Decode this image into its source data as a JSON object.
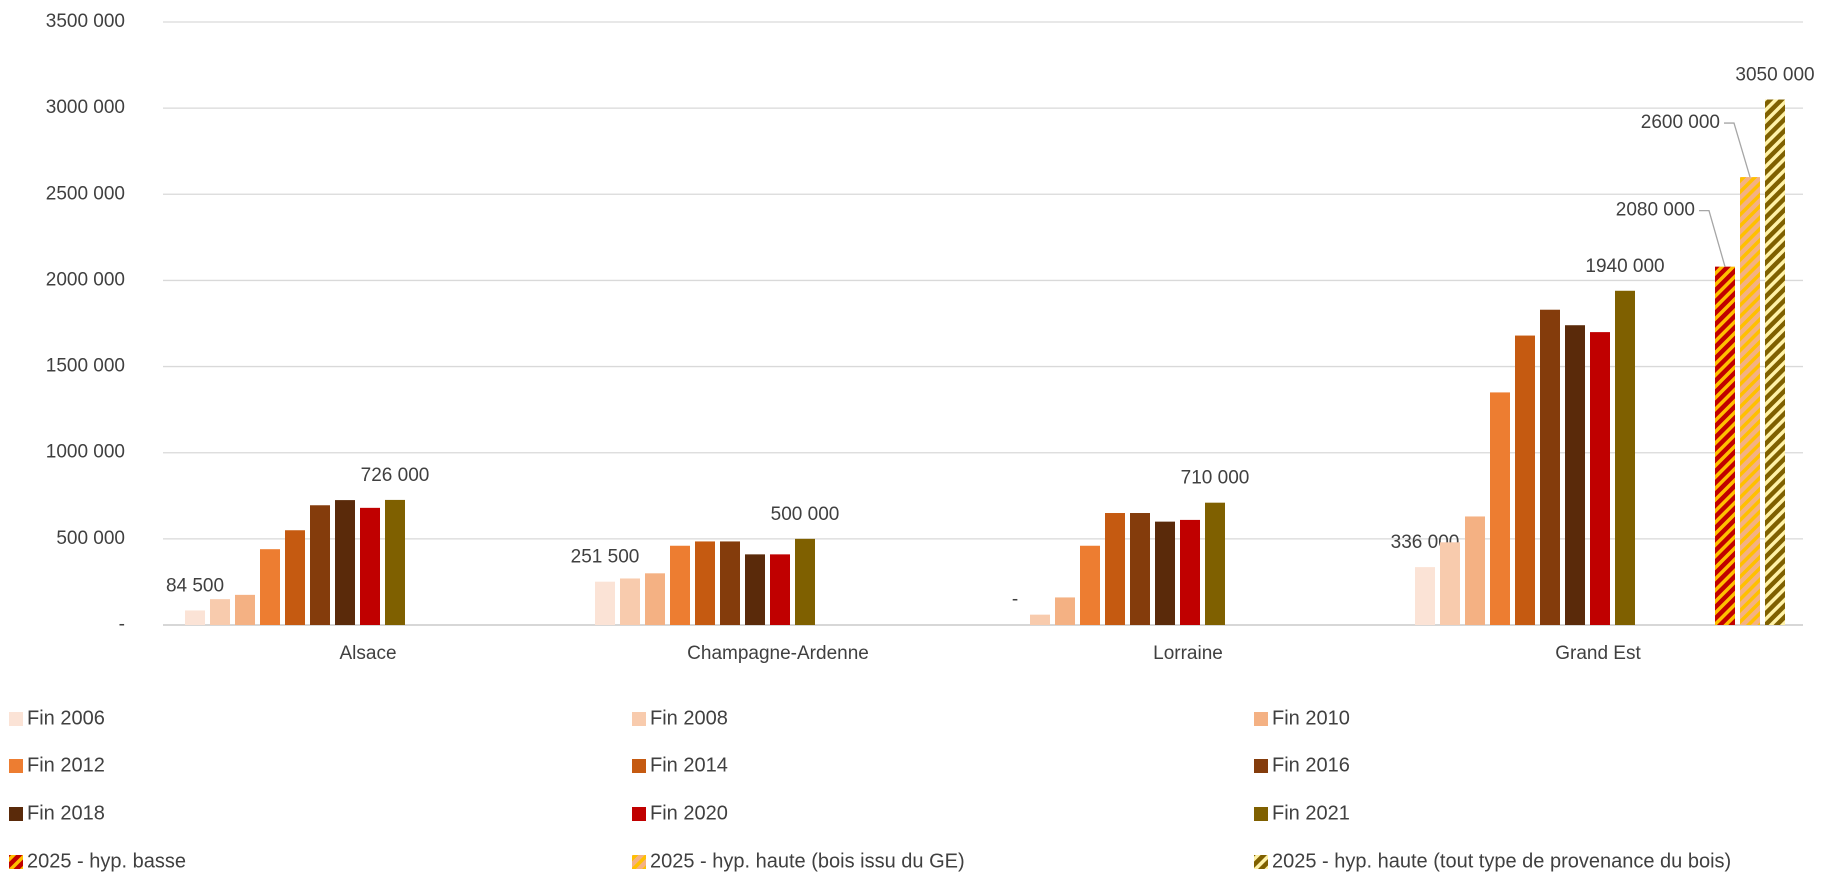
{
  "chart_data": {
    "type": "bar",
    "categories": [
      "Alsace",
      "Champagne-Ardenne",
      "Lorraine",
      "Grand Est"
    ],
    "ylim": [
      0,
      3500000
    ],
    "yticks": [
      {
        "value": 0,
        "label": "-"
      },
      {
        "value": 500000,
        "label": "500 000"
      },
      {
        "value": 1000000,
        "label": "1000 000"
      },
      {
        "value": 1500000,
        "label": "1500 000"
      },
      {
        "value": 2000000,
        "label": "2000 000"
      },
      {
        "value": 2500000,
        "label": "2500 000"
      },
      {
        "value": 3000000,
        "label": "3000 000"
      },
      {
        "value": 3500000,
        "label": "3500 000"
      }
    ],
    "grid": true,
    "legend": "bottom",
    "series": [
      {
        "name": "Fin 2006",
        "color": "#fbe3d6",
        "values": [
          84500,
          251500,
          0,
          336000
        ],
        "value_labels": [
          "84 500",
          "251 500",
          "-",
          "336 000"
        ]
      },
      {
        "name": "Fin 2008",
        "color": "#f8cbad",
        "values": [
          150000,
          270000,
          60000,
          480000
        ]
      },
      {
        "name": "Fin 2010",
        "color": "#f4b183",
        "values": [
          175000,
          300000,
          160000,
          630000
        ]
      },
      {
        "name": "Fin 2012",
        "color": "#ed7d31",
        "values": [
          440000,
          460000,
          460000,
          1350000
        ]
      },
      {
        "name": "Fin 2014",
        "color": "#c55a11",
        "values": [
          550000,
          485000,
          650000,
          1680000
        ]
      },
      {
        "name": "Fin 2016",
        "color": "#843c0c",
        "values": [
          695000,
          485000,
          650000,
          1830000
        ]
      },
      {
        "name": "Fin 2018",
        "color": "#5a2a0a",
        "values": [
          725000,
          410000,
          600000,
          1740000
        ]
      },
      {
        "name": "Fin 2020",
        "color": "#c00000",
        "values": [
          680000,
          410000,
          610000,
          1700000
        ]
      },
      {
        "name": "Fin 2021",
        "color": "#7f6000",
        "values": [
          726000,
          500000,
          710000,
          1940000
        ],
        "value_labels": [
          "726 000",
          "500 000",
          "710 000",
          "1940 000"
        ]
      },
      {
        "name": "2025 - hyp. basse",
        "color": "#c00000",
        "hatch": "#ffc000",
        "values": [
          null,
          null,
          null,
          2080000
        ],
        "value_labels": [
          null,
          null,
          null,
          "2080 000"
        ]
      },
      {
        "name": "2025 - hyp. haute (bois issu du GE)",
        "color": "#f4b183",
        "hatch": "#ffc000",
        "values": [
          null,
          null,
          null,
          2600000
        ],
        "value_labels": [
          null,
          null,
          null,
          "2600 000"
        ]
      },
      {
        "name": "2025 - hyp. haute (tout type de provenance du bois)",
        "color": "#7f6000",
        "hatch": "#fff2a8",
        "values": [
          null,
          null,
          null,
          3050000
        ],
        "value_labels": [
          null,
          null,
          null,
          "3050 000"
        ]
      }
    ]
  }
}
